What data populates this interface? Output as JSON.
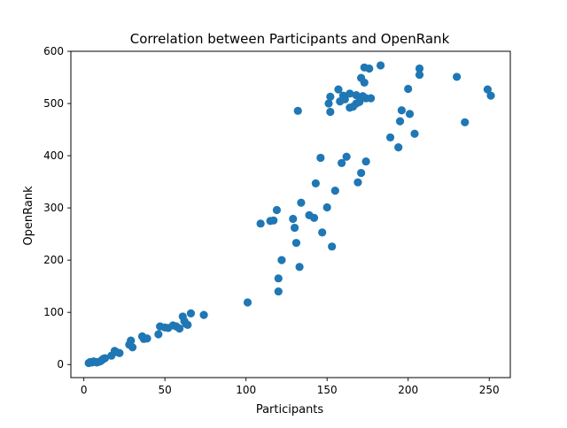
{
  "chart_data": {
    "type": "scatter",
    "title": "Correlation between Participants and OpenRank",
    "xlabel": "Participants",
    "ylabel": "OpenRank",
    "xlim": [
      -8,
      263
    ],
    "ylim": [
      -25,
      600
    ],
    "xticks": [
      0,
      50,
      100,
      150,
      200,
      250
    ],
    "yticks": [
      0,
      100,
      200,
      300,
      400,
      500,
      600
    ],
    "grid": false,
    "marker_color": "#1f77b4",
    "points": [
      [
        3,
        3
      ],
      [
        4,
        5
      ],
      [
        5,
        4
      ],
      [
        6,
        6
      ],
      [
        7,
        5
      ],
      [
        8,
        4
      ],
      [
        9,
        5
      ],
      [
        10,
        6
      ],
      [
        11,
        8
      ],
      [
        12,
        11
      ],
      [
        13,
        12
      ],
      [
        17,
        17
      ],
      [
        19,
        26
      ],
      [
        20,
        24
      ],
      [
        22,
        22
      ],
      [
        28,
        38
      ],
      [
        29,
        46
      ],
      [
        30,
        33
      ],
      [
        36,
        54
      ],
      [
        37,
        49
      ],
      [
        39,
        50
      ],
      [
        46,
        58
      ],
      [
        47,
        73
      ],
      [
        50,
        71
      ],
      [
        52,
        70
      ],
      [
        55,
        75
      ],
      [
        57,
        73
      ],
      [
        59,
        69
      ],
      [
        61,
        92
      ],
      [
        62,
        83
      ],
      [
        63,
        78
      ],
      [
        64,
        76
      ],
      [
        66,
        98
      ],
      [
        74,
        95
      ],
      [
        101,
        119
      ],
      [
        109,
        270
      ],
      [
        115,
        275
      ],
      [
        117,
        276
      ],
      [
        119,
        296
      ],
      [
        120,
        165
      ],
      [
        120,
        140
      ],
      [
        122,
        200
      ],
      [
        129,
        279
      ],
      [
        130,
        262
      ],
      [
        131,
        233
      ],
      [
        132,
        486
      ],
      [
        133,
        187
      ],
      [
        134,
        310
      ],
      [
        139,
        286
      ],
      [
        142,
        281
      ],
      [
        143,
        347
      ],
      [
        146,
        396
      ],
      [
        147,
        253
      ],
      [
        150,
        301
      ],
      [
        151,
        500
      ],
      [
        152,
        513
      ],
      [
        152,
        484
      ],
      [
        153,
        226
      ],
      [
        155,
        333
      ],
      [
        157,
        527
      ],
      [
        158,
        504
      ],
      [
        159,
        386
      ],
      [
        160,
        515
      ],
      [
        161,
        508
      ],
      [
        162,
        398
      ],
      [
        164,
        492
      ],
      [
        164,
        519
      ],
      [
        166,
        494
      ],
      [
        168,
        516
      ],
      [
        168,
        500
      ],
      [
        169,
        349
      ],
      [
        170,
        503
      ],
      [
        171,
        367
      ],
      [
        171,
        549
      ],
      [
        172,
        514
      ],
      [
        173,
        569
      ],
      [
        173,
        540
      ],
      [
        174,
        389
      ],
      [
        174,
        510
      ],
      [
        176,
        567
      ],
      [
        177,
        510
      ],
      [
        183,
        573
      ],
      [
        189,
        435
      ],
      [
        194,
        416
      ],
      [
        195,
        466
      ],
      [
        196,
        487
      ],
      [
        200,
        528
      ],
      [
        201,
        480
      ],
      [
        204,
        442
      ],
      [
        207,
        567
      ],
      [
        207,
        555
      ],
      [
        230,
        551
      ],
      [
        235,
        464
      ],
      [
        249,
        527
      ],
      [
        251,
        515
      ]
    ]
  }
}
